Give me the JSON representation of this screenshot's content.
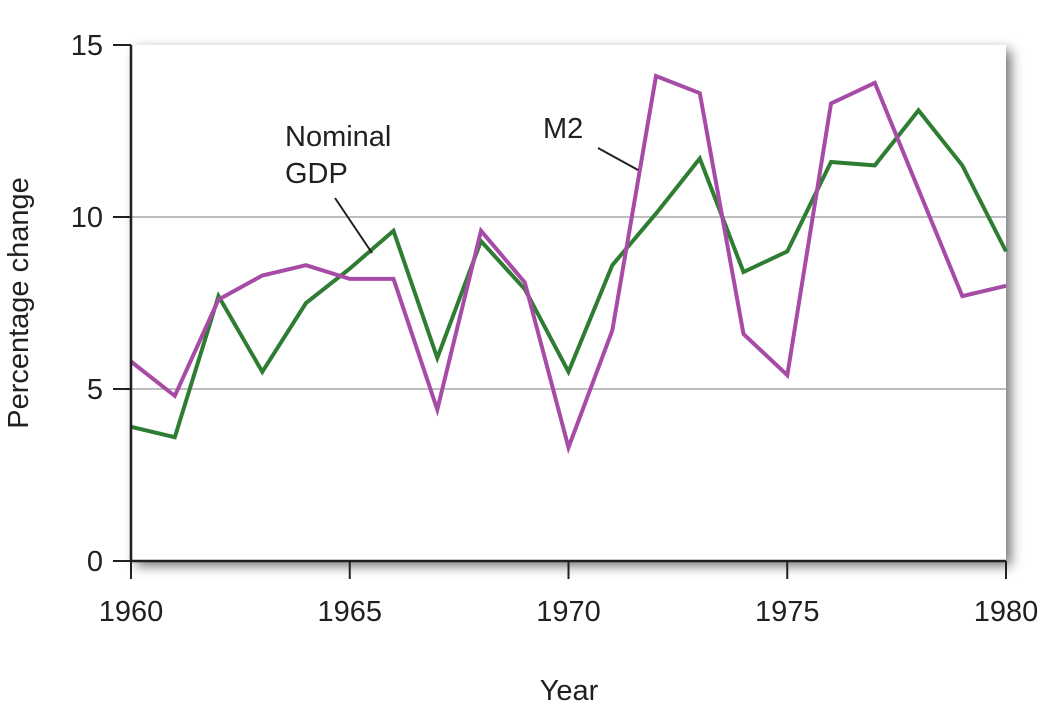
{
  "chart_data": {
    "type": "line",
    "title": "",
    "xlabel": "Year",
    "ylabel": "Percentage change",
    "xlim": [
      1960,
      1980
    ],
    "ylim": [
      0,
      15
    ],
    "x_ticks": [
      1960,
      1965,
      1970,
      1975,
      1980
    ],
    "y_ticks": [
      0,
      5,
      10,
      15
    ],
    "grid": "horizontal",
    "x": [
      1960,
      1961,
      1962,
      1963,
      1964,
      1965,
      1966,
      1967,
      1968,
      1969,
      1970,
      1971,
      1972,
      1973,
      1974,
      1975,
      1976,
      1977,
      1978,
      1979,
      1980
    ],
    "series": [
      {
        "name": "Nominal GDP",
        "color": "#2e7d32",
        "values": [
          3.9,
          3.6,
          7.7,
          5.5,
          7.5,
          8.5,
          9.6,
          5.9,
          9.3,
          7.9,
          5.5,
          8.6,
          10.1,
          11.7,
          8.4,
          9.0,
          11.6,
          11.5,
          13.1,
          11.5,
          9.0
        ]
      },
      {
        "name": "M2",
        "color": "#a64ca6",
        "values": [
          5.8,
          4.8,
          7.6,
          8.3,
          8.6,
          8.2,
          8.2,
          4.4,
          9.6,
          8.1,
          3.3,
          6.7,
          14.1,
          13.6,
          6.6,
          5.4,
          13.3,
          13.9,
          10.8,
          7.7,
          8.0
        ]
      }
    ],
    "annotations": [
      {
        "series": 0,
        "lines": [
          "Nominal",
          "GDP"
        ]
      },
      {
        "series": 1,
        "lines": [
          "M2"
        ]
      }
    ]
  }
}
